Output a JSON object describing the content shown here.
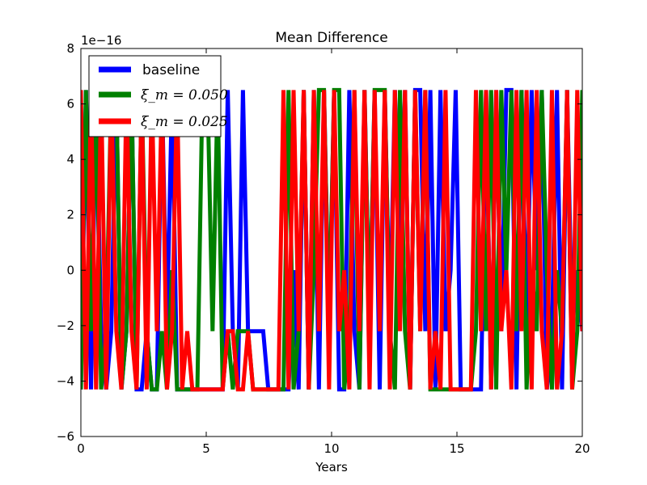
{
  "chart_data": {
    "type": "line",
    "title": "Mean Difference",
    "xlabel": "Years",
    "ylabel": "",
    "xlim": [
      0,
      20
    ],
    "ylim": [
      -6,
      8
    ],
    "xticks": [
      0,
      5,
      10,
      15,
      20
    ],
    "yticks": [
      -6,
      -4,
      -2,
      0,
      2,
      4,
      6,
      8
    ],
    "xtick_labels": [
      "0",
      "5",
      "10",
      "15",
      "20"
    ],
    "ytick_labels": [
      "−6",
      "−4",
      "−2",
      "0",
      "2",
      "4",
      "6",
      "8"
    ],
    "y_offset_label": "1e−16",
    "grid": false,
    "legend": "top-left",
    "series": [
      {
        "name": "baseline",
        "color": "#0000ff",
        "values": [
          -4.3,
          6.5,
          -4.3,
          6.5,
          -2.2,
          -4.3,
          -2.2,
          6.5,
          -4.3,
          -2.2,
          6.5,
          -4.3,
          -4.3,
          -2.2,
          -4.3,
          -4.3,
          6.5,
          -2.2,
          6.5,
          -4.3,
          -4.3,
          -4.3,
          -4.3,
          -4.3,
          -4.3,
          -4.3,
          -4.3,
          -4.3,
          -4.3,
          6.5,
          -2.2,
          -4.3,
          6.5,
          -2.2,
          -2.2,
          -2.2,
          -2.2,
          -4.3,
          -4.3,
          -4.3,
          -4.3,
          -4.3,
          0.0,
          -4.3,
          6.5,
          -4.3,
          6.5,
          -4.3,
          6.5,
          -2.2,
          6.5,
          -4.3,
          -4.3,
          6.5,
          -2.2,
          -4.3,
          6.5,
          -2.2,
          6.5,
          -4.3,
          6.5,
          -2.2,
          6.5,
          0.0,
          6.5,
          -4.3,
          6.5,
          6.5,
          -2.2,
          6.5,
          -4.3,
          6.5,
          -2.2,
          0.0,
          6.5,
          -4.3,
          -4.3,
          -4.3,
          -4.3,
          -4.3,
          6.5,
          -4.3,
          6.5,
          -2.2,
          6.5,
          6.5,
          -4.3,
          6.5,
          -2.2,
          6.5,
          0.0,
          6.5,
          -4.3,
          -2.2,
          6.5,
          -4.3,
          6.5,
          -2.2,
          0.0,
          -2.2
        ]
      },
      {
        "name": "ξ_m = 0.050",
        "color": "#008000",
        "values": [
          -4.3,
          6.5,
          -2.2,
          6.5,
          -4.3,
          -2.2,
          6.5,
          6.5,
          -4.3,
          -2.2,
          6.5,
          -4.3,
          6.5,
          -2.2,
          -4.3,
          -4.3,
          -2.2,
          -4.3,
          0.0,
          -4.3,
          -4.3,
          -4.3,
          -4.3,
          -4.3,
          6.5,
          6.5,
          -2.2,
          6.5,
          -4.3,
          -2.2,
          -4.3,
          -2.2,
          -2.2,
          -2.2,
          -4.3,
          -4.3,
          -4.3,
          -4.3,
          -4.3,
          -4.3,
          -4.3,
          6.5,
          -4.3,
          -2.2,
          6.5,
          -4.3,
          0.0,
          6.5,
          6.5,
          -2.2,
          6.5,
          6.5,
          -4.3,
          -2.2,
          6.5,
          -4.3,
          6.5,
          -2.2,
          6.5,
          6.5,
          6.5,
          -2.2,
          -4.3,
          6.5,
          -2.2,
          -4.3,
          6.5,
          -2.2,
          6.5,
          -4.3,
          -4.3,
          -4.3,
          -4.3,
          -4.3,
          -4.3,
          -4.3,
          -4.3,
          -4.3,
          -2.2,
          6.5,
          -2.2,
          6.5,
          -4.3,
          6.5,
          0.0,
          6.5,
          -2.2,
          6.5,
          -4.3,
          0.0,
          -2.2,
          6.5,
          0.0,
          -4.3,
          0.0,
          -2.2,
          6.5,
          -4.3,
          -2.2,
          6.5
        ]
      },
      {
        "name": "ξ_m = 0.025",
        "color": "#ff0000",
        "values": [
          6.5,
          -4.3,
          6.5,
          -4.3,
          6.5,
          -4.3,
          6.5,
          -2.2,
          -4.3,
          6.5,
          -2.2,
          -4.3,
          6.5,
          -4.3,
          6.5,
          -2.2,
          6.5,
          -4.3,
          -2.2,
          6.5,
          -4.3,
          -2.2,
          -4.3,
          -4.3,
          -4.3,
          -4.3,
          -4.3,
          -4.3,
          -4.3,
          -2.2,
          -2.2,
          -4.3,
          -4.3,
          -2.2,
          -4.3,
          -4.3,
          -4.3,
          -4.3,
          -4.3,
          -4.3,
          6.5,
          -4.3,
          6.5,
          -2.2,
          6.5,
          -4.3,
          6.5,
          -2.2,
          6.5,
          -4.3,
          6.5,
          -2.2,
          0.0,
          -4.3,
          6.5,
          -2.2,
          6.5,
          -4.3,
          6.5,
          -2.2,
          6.5,
          -4.3,
          6.5,
          -2.2,
          6.5,
          -4.3,
          6.5,
          -2.2,
          6.5,
          -4.3,
          -2.2,
          -4.3,
          6.5,
          -4.3,
          -4.3,
          -4.3,
          -4.3,
          -4.3,
          6.5,
          -2.2,
          6.5,
          -4.3,
          6.5,
          -2.2,
          0.0,
          -4.3,
          6.5,
          -2.2,
          6.5,
          -4.3,
          6.5,
          -2.2,
          -4.3,
          6.5,
          -4.3,
          -2.2,
          6.5,
          -4.3,
          6.5,
          -2.2
        ]
      }
    ]
  }
}
